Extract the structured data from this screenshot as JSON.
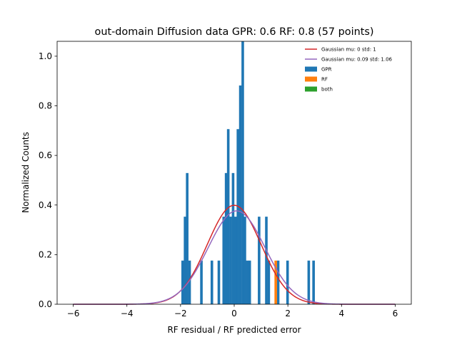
{
  "chart_data": {
    "type": "bar",
    "title": "out-domain Diffusion data GPR: 0.6 RF: 0.8 (57 points)",
    "xlabel": "RF residual / RF predicted error",
    "ylabel": "Normalized Counts",
    "xlim": [
      -6.6,
      6.6
    ],
    "ylim": [
      0,
      1.06
    ],
    "xticks": [
      -6,
      -4,
      -2,
      0,
      2,
      4,
      6
    ],
    "yticks": [
      0.0,
      0.2,
      0.4,
      0.6,
      0.8,
      1.0
    ],
    "xtick_labels": [
      "−6",
      "−4",
      "−2",
      "0",
      "2",
      "4",
      "6"
    ],
    "ytick_labels": [
      "0.0",
      "0.2",
      "0.4",
      "0.6",
      "0.8",
      "1.0"
    ],
    "bin_width": 0.0877,
    "legend_position": "top-right",
    "lines": [
      {
        "name": "Gaussian mu: 0 std: 1",
        "color": "#d62728",
        "mu": 0,
        "std": 1
      },
      {
        "name": "Gaussian mu: 0.09 std: 1.06",
        "color": "#9467bd",
        "mu": 0.09,
        "std": 1.06
      }
    ],
    "series": [
      {
        "name": "GPR",
        "color": "#1f77b4",
        "bins": [
          {
            "x": -1.97,
            "y": 0.176
          },
          {
            "x": -1.88,
            "y": 0.353
          },
          {
            "x": -1.8,
            "y": 0.529
          },
          {
            "x": -1.71,
            "y": 0.176
          },
          {
            "x": -1.27,
            "y": 0.176
          },
          {
            "x": -0.88,
            "y": 0.176
          },
          {
            "x": -0.62,
            "y": 0.176
          },
          {
            "x": -0.44,
            "y": 0.353
          },
          {
            "x": -0.35,
            "y": 0.529
          },
          {
            "x": -0.27,
            "y": 0.706
          },
          {
            "x": -0.18,
            "y": 0.353
          },
          {
            "x": -0.09,
            "y": 0.529
          },
          {
            "x": 0.0,
            "y": 0.353
          },
          {
            "x": 0.09,
            "y": 0.706
          },
          {
            "x": 0.18,
            "y": 0.882
          },
          {
            "x": 0.27,
            "y": 1.06
          },
          {
            "x": 0.35,
            "y": 0.353
          },
          {
            "x": 0.44,
            "y": 0.176
          },
          {
            "x": 0.53,
            "y": 0.176
          },
          {
            "x": 0.88,
            "y": 0.353
          },
          {
            "x": 1.15,
            "y": 0.353
          },
          {
            "x": 1.24,
            "y": 0.176
          },
          {
            "x": 1.59,
            "y": 0.176
          },
          {
            "x": 1.94,
            "y": 0.176
          },
          {
            "x": 2.73,
            "y": 0.176
          },
          {
            "x": 2.91,
            "y": 0.176
          }
        ]
      },
      {
        "name": "RF",
        "color": "#ff7f0e",
        "bins": [
          {
            "x": 1.5,
            "y": 0.176
          }
        ]
      },
      {
        "name": "both",
        "color": "#2ca02c",
        "bins": []
      }
    ]
  }
}
